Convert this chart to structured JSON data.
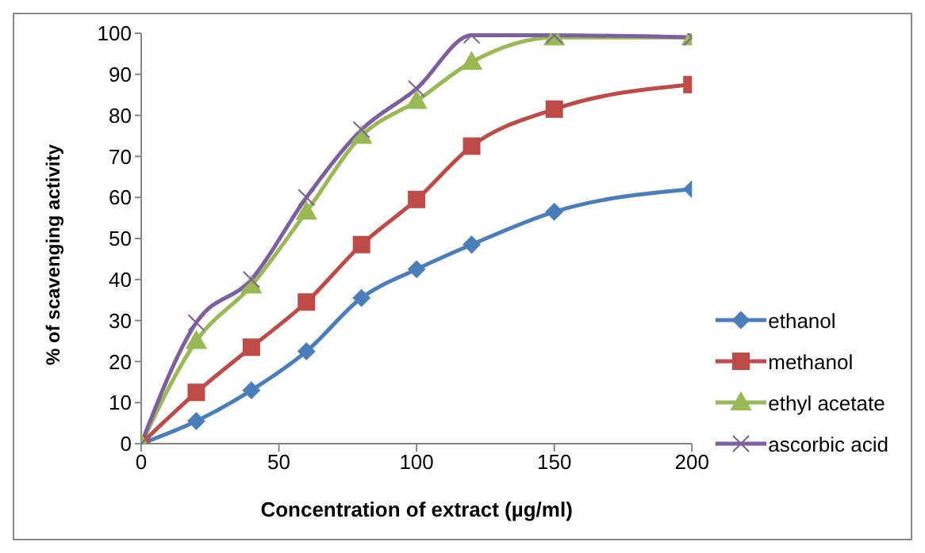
{
  "chart_data": {
    "type": "line",
    "xlabel": "Concentration of extract (µg/ml)",
    "ylabel": "% of scavenging activity",
    "x": [
      0,
      20,
      40,
      60,
      80,
      100,
      120,
      150,
      200
    ],
    "xlim": [
      0,
      200
    ],
    "xticks": [
      0,
      50,
      100,
      150,
      200
    ],
    "ylim": [
      0,
      100
    ],
    "yticks": [
      0,
      10,
      20,
      30,
      40,
      50,
      60,
      70,
      80,
      90,
      100
    ],
    "grid": false,
    "legend": "right",
    "series": [
      {
        "name": "ethanol",
        "color": "#4a7ebb",
        "marker": "diamond",
        "values": [
          0,
          5.5,
          13,
          22.5,
          35.5,
          42.5,
          48.5,
          56.5,
          62
        ]
      },
      {
        "name": "methanol",
        "color": "#be4b48",
        "marker": "square",
        "values": [
          0,
          12.5,
          23.5,
          34.5,
          48.5,
          59.5,
          72.5,
          81.5,
          87.5
        ]
      },
      {
        "name": "ethyl acetate",
        "color": "#98b954",
        "marker": "triangle",
        "values": [
          0,
          25,
          38.5,
          56.5,
          75,
          83.5,
          93,
          99,
          99
        ]
      },
      {
        "name": "ascorbic acid",
        "color": "#7d5fa0",
        "marker": "cross",
        "values": [
          0,
          29.5,
          40,
          60,
          76.5,
          86.5,
          99.5,
          99.5,
          99
        ]
      }
    ]
  }
}
